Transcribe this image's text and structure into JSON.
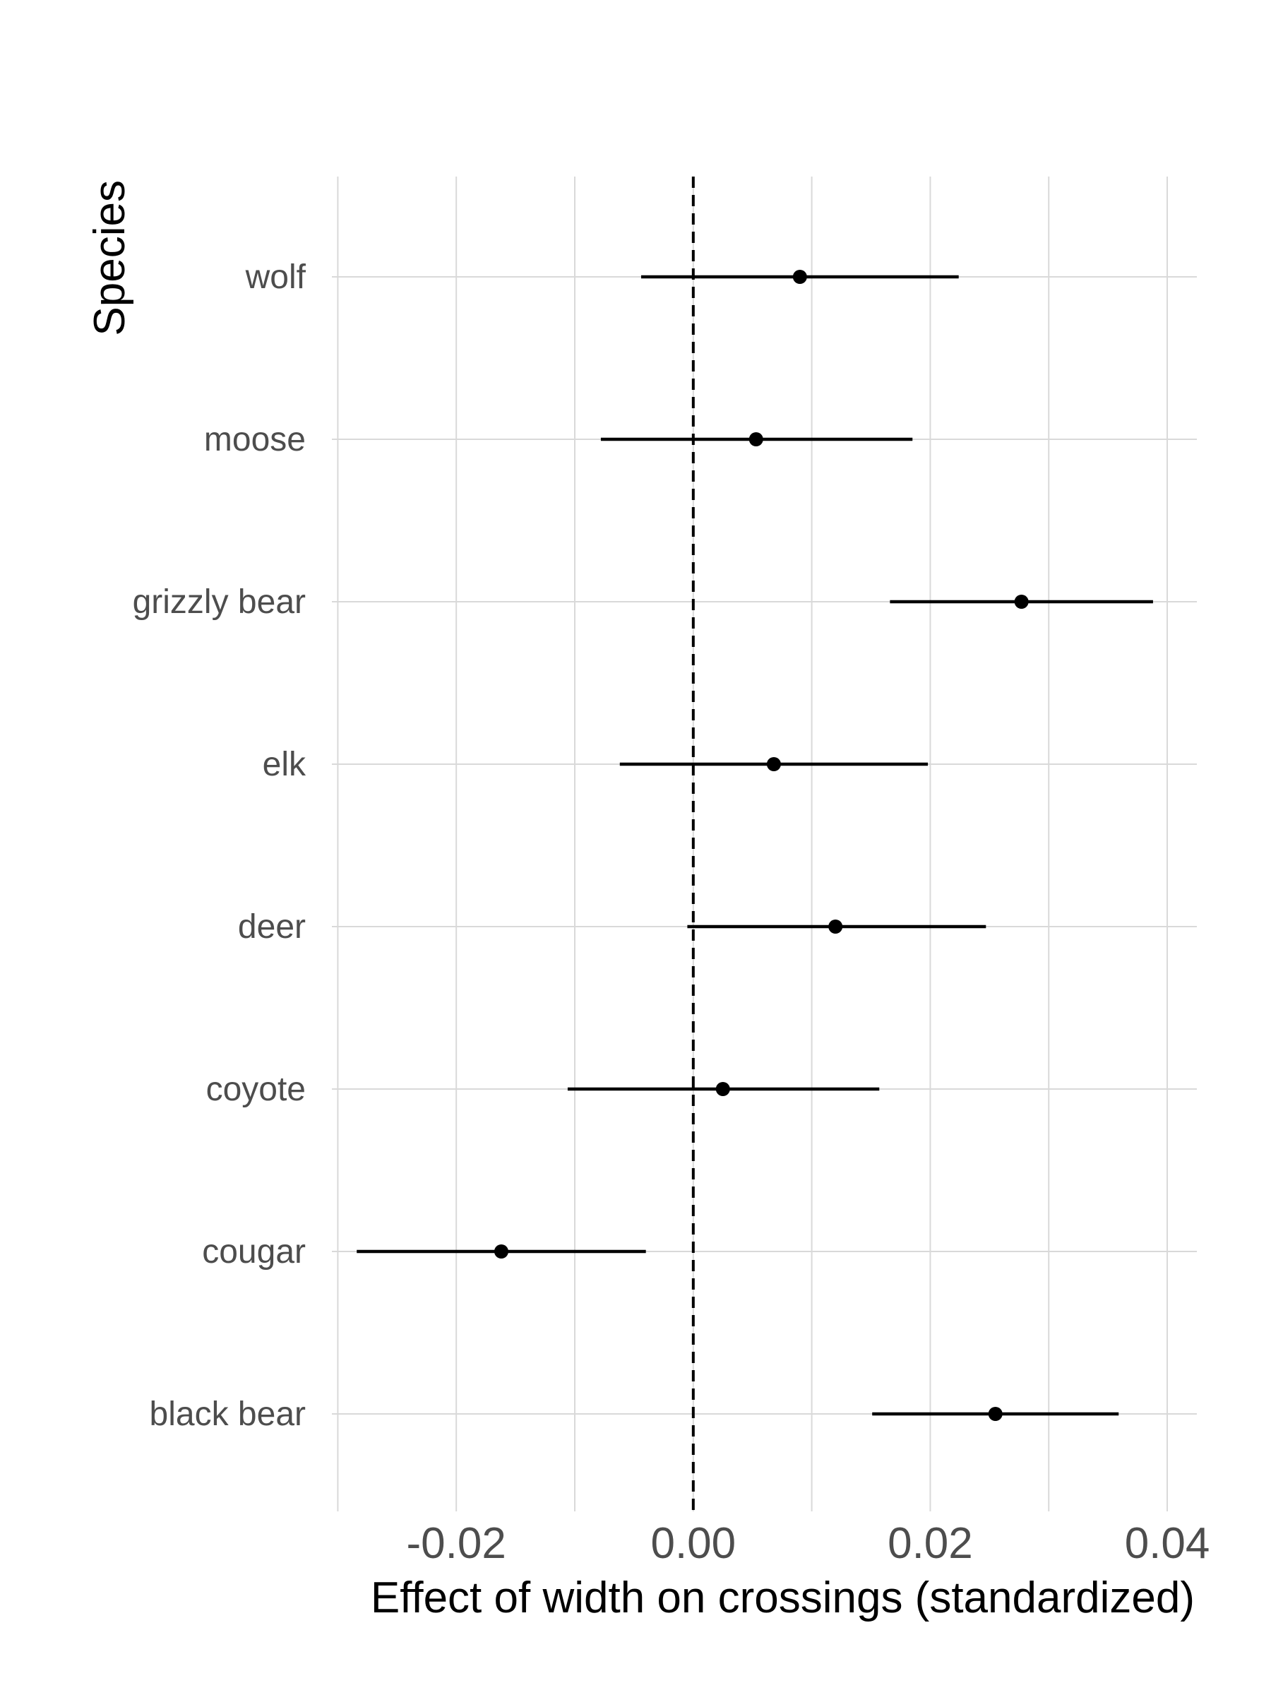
{
  "chart_data": {
    "type": "scatter",
    "xlabel": "Effect of width on crossings (standardized)",
    "ylabel": "Species",
    "xlim": [
      -0.0305,
      0.0425
    ],
    "x_ticks": [
      -0.02,
      0.0,
      0.02,
      0.04
    ],
    "x_tick_labels": [
      "-0.02",
      "0.00",
      "0.02",
      "0.04"
    ],
    "x_minor_ticks": [
      -0.03,
      -0.01,
      0.01,
      0.03
    ],
    "reference_line": {
      "x": 0.0,
      "style": "dashed"
    },
    "grid": true,
    "categories": [
      "wolf",
      "moose",
      "grizzly bear",
      "elk",
      "deer",
      "coyote",
      "cougar",
      "black bear"
    ],
    "series": [
      {
        "values": [
          0.009,
          0.0053,
          0.0277,
          0.0068,
          0.012,
          0.0025,
          -0.0162,
          0.0255
        ],
        "lower": [
          -0.0044,
          -0.0078,
          0.0166,
          -0.0062,
          -0.0005,
          -0.0106,
          -0.0284,
          0.0151
        ],
        "upper": [
          0.0224,
          0.0185,
          0.0388,
          0.0198,
          0.0247,
          0.0157,
          -0.004,
          0.0359
        ]
      }
    ],
    "colors": {
      "points": "#000000",
      "grid": "#d9d9d9",
      "tick_text": "#4d4d4d"
    }
  }
}
